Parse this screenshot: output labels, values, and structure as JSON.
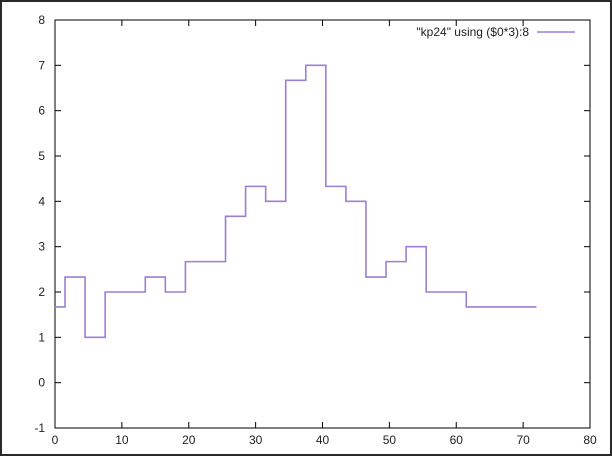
{
  "chart_data": {
    "type": "line",
    "step": true,
    "title": "",
    "xlabel": "",
    "ylabel": "",
    "xlim": [
      0,
      80
    ],
    "ylim": [
      -1,
      8
    ],
    "x_ticks": [
      0,
      10,
      20,
      30,
      40,
      50,
      60,
      70,
      80
    ],
    "y_ticks": [
      -1,
      0,
      1,
      2,
      3,
      4,
      5,
      6,
      7,
      8
    ],
    "grid": false,
    "legend_position": "top-right",
    "series": [
      {
        "name": "\"kp24\" using ($0*3):8",
        "color": "#9b7fd4",
        "x": [
          0,
          3,
          6,
          9,
          12,
          15,
          18,
          21,
          24,
          27,
          30,
          33,
          36,
          39,
          42,
          45,
          48,
          51,
          54,
          57,
          60,
          63,
          66,
          69,
          72
        ],
        "values": [
          1.67,
          2.33,
          1.0,
          2.0,
          2.0,
          2.33,
          2.0,
          2.67,
          2.67,
          3.67,
          4.33,
          4.0,
          6.67,
          7.0,
          4.33,
          4.0,
          2.33,
          2.67,
          3.0,
          2.0,
          2.0,
          1.67,
          1.67,
          1.67,
          1.67
        ]
      }
    ]
  }
}
